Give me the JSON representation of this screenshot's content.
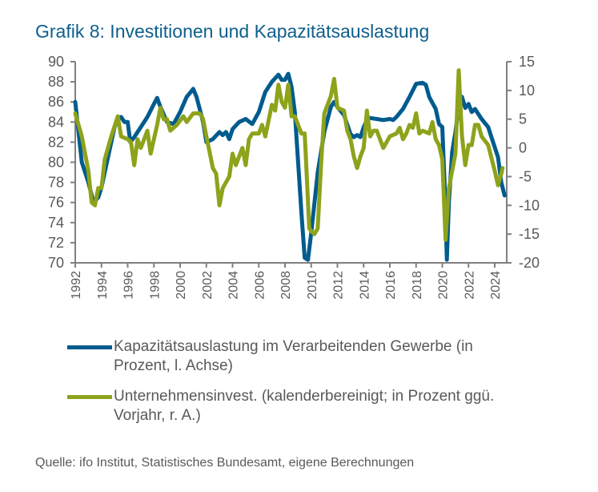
{
  "title": "Grafik 8: Investitionen und Kapazitätsauslastung",
  "source": "Quelle: ifo Institut, Statistisches Bundesamt, eigene Berechnungen",
  "chart_data": {
    "type": "line",
    "title": "Grafik 8: Investitionen und Kapazitätsauslastung",
    "x_ticks": [
      "1992",
      "1994",
      "1996",
      "1998",
      "2000",
      "2002",
      "2004",
      "2006",
      "2008",
      "2010",
      "2012",
      "2014",
      "2016",
      "2018",
      "2020",
      "2022",
      "2024"
    ],
    "y_left": {
      "range": [
        70,
        90
      ],
      "ticks": [
        "90",
        "88",
        "86",
        "84",
        "82",
        "80",
        "78",
        "76",
        "74",
        "72",
        "70"
      ]
    },
    "y_right": {
      "range": [
        -20,
        15
      ],
      "ticks": [
        "15",
        "10",
        "5",
        "0",
        "-5",
        "-10",
        "-15",
        "-20"
      ]
    },
    "grid": false,
    "legend_placement": "bottom",
    "series": [
      {
        "name": "Kapazitätsauslastung im Verarbeitenden Gewerbe (in Prozent, l. Achse)",
        "axis": "left",
        "color": "#005b8e",
        "x": [
          1992,
          1992.25,
          1992.5,
          1993,
          1993.4,
          1993.75,
          1994,
          1994.5,
          1995,
          1995.25,
          1995.5,
          1995.75,
          1996,
          1996.2,
          1996.5,
          1997,
          1997.5,
          1998,
          1998.25,
          1998.5,
          1999,
          1999.5,
          2000,
          2000.5,
          2001,
          2001.25,
          2001.75,
          2002,
          2002.5,
          2003,
          2003.25,
          2003.5,
          2003.75,
          2004,
          2004.5,
          2005,
          2005.5,
          2006,
          2006.5,
          2007,
          2007.5,
          2007.75,
          2008,
          2008.25,
          2008.5,
          2008.75,
          2009,
          2009.25,
          2009.5,
          2009.75,
          2010,
          2010.5,
          2011,
          2011.5,
          2011.75,
          2012,
          2012.5,
          2013,
          2013.25,
          2013.5,
          2013.75,
          2014,
          2014.25,
          2014.5,
          2015,
          2015.5,
          2016,
          2016.25,
          2016.5,
          2017,
          2017.5,
          2018,
          2018.5,
          2018.75,
          2019,
          2019.5,
          2019.75,
          2020,
          2020.2,
          2020.35,
          2020.5,
          2020.75,
          2021,
          2021.25,
          2021.5,
          2021.75,
          2022,
          2022.25,
          2022.5,
          2022.75,
          2023,
          2023.5,
          2024,
          2024.25,
          2024.5,
          2024.75
        ],
        "values": [
          86,
          83,
          80,
          78,
          76,
          76.5,
          77.5,
          80.5,
          83.5,
          84.3,
          84.5,
          84,
          84,
          82,
          82.5,
          83.5,
          84.5,
          85.8,
          86.4,
          85.5,
          84,
          83.8,
          85,
          86.5,
          87.3,
          86.5,
          84,
          82,
          82.3,
          83,
          82.7,
          83,
          82.3,
          83.3,
          84,
          84.3,
          83.8,
          85,
          87,
          88,
          88.7,
          88.2,
          88.2,
          88.8,
          87.5,
          85,
          80,
          75,
          70.5,
          70.3,
          73,
          79,
          83,
          85.5,
          86,
          85.5,
          84.7,
          82.8,
          82.5,
          82.7,
          82.5,
          83.5,
          84.2,
          84.4,
          84.3,
          84.2,
          84.3,
          84.2,
          84.5,
          85.3,
          86.5,
          87.8,
          87.9,
          87.7,
          86.5,
          85.3,
          83.8,
          83.5,
          77,
          70.3,
          76,
          81,
          83,
          85.5,
          86.5,
          85.4,
          85.8,
          85,
          85.3,
          84.8,
          84.3,
          83.5,
          81.5,
          80.5,
          78,
          76.7
        ]
      },
      {
        "name": "Unternehmensinvest. (kalenderbereinigt; in Prozent ggü. Vorjahr, r. A.)",
        "axis": "right",
        "color": "#8ea21b",
        "x": [
          1992,
          1992.5,
          1993,
          1993.25,
          1993.5,
          1993.75,
          1994,
          1994.25,
          1994.75,
          1995.25,
          1995.5,
          1996,
          1996.25,
          1996.5,
          1996.75,
          1997,
          1997.5,
          1997.75,
          1998.25,
          1998.5,
          1998.75,
          1999,
          1999.25,
          1999.75,
          2000.25,
          2000.5,
          2001,
          2001.5,
          2001.75,
          2002,
          2002.5,
          2002.75,
          2003,
          2003.25,
          2003.75,
          2004,
          2004.25,
          2004.5,
          2004.75,
          2005,
          2005.25,
          2005.5,
          2006,
          2006.25,
          2006.5,
          2007,
          2007.25,
          2007.5,
          2007.75,
          2008,
          2008.25,
          2008.5,
          2008.75,
          2009,
          2009.25,
          2009.5,
          2009.6,
          2009.85,
          2010,
          2010.25,
          2010.5,
          2010.75,
          2011,
          2011.5,
          2011.75,
          2012,
          2012.5,
          2012.75,
          2013,
          2013.25,
          2013.5,
          2013.75,
          2014,
          2014.25,
          2014.5,
          2014.75,
          2015,
          2015.5,
          2016,
          2016.5,
          2016.75,
          2017,
          2017.25,
          2017.5,
          2017.75,
          2018,
          2018.25,
          2018.5,
          2019,
          2019.25,
          2019.5,
          2019.75,
          2020,
          2020.25,
          2020.5,
          2020.75,
          2021,
          2021.25,
          2021.5,
          2021.75,
          2022,
          2022.25,
          2022.5,
          2022.75,
          2023,
          2023.5,
          2024,
          2024.25,
          2024.5,
          2024.6
        ],
        "values": [
          6,
          2,
          -4,
          -9.5,
          -10,
          -7,
          -7,
          -2,
          2,
          5.5,
          2,
          1.5,
          1,
          -3,
          1.5,
          0,
          3,
          -1,
          4,
          7,
          5,
          5,
          3,
          4,
          5.5,
          4.5,
          6,
          6,
          5,
          2,
          -3.5,
          -4.5,
          -10,
          -7,
          -5,
          -1,
          -3,
          -1.5,
          0,
          -3,
          1.5,
          2.5,
          2.5,
          4,
          2,
          7.5,
          6.5,
          11,
          8,
          7,
          11,
          5.5,
          5.5,
          4,
          2.5,
          2.5,
          -2,
          -14,
          -14.5,
          -15,
          -14,
          -3,
          6,
          9,
          12,
          7,
          6.5,
          3,
          1.5,
          -1.5,
          -3.5,
          -1.5,
          0,
          6.5,
          2,
          3,
          3,
          0,
          2,
          2.5,
          3.5,
          1.5,
          2.5,
          4,
          3.5,
          6,
          2.5,
          3,
          2.5,
          4.5,
          1.5,
          0.5,
          -2,
          -16,
          -7,
          -4,
          -1,
          13.5,
          2,
          -3,
          0.5,
          0.5,
          4,
          4,
          2,
          0.5,
          -4,
          -6.5,
          -4.5,
          -3.5
        ]
      }
    ]
  }
}
